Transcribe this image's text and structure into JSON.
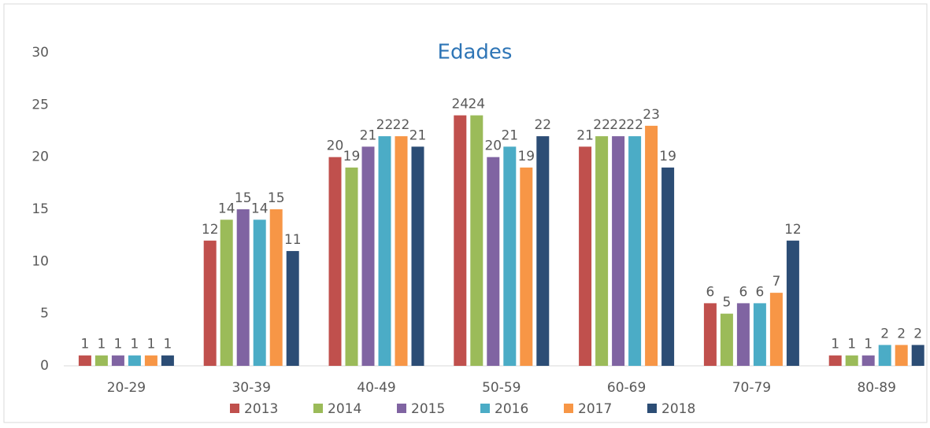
{
  "chart_data": {
    "type": "bar",
    "title": "Edades",
    "categories": [
      "20-29",
      "30-39",
      "40-49",
      "50-59",
      "60-69",
      "70-79",
      "80-89"
    ],
    "series": [
      {
        "name": "2013",
        "color": "#c0504d",
        "values": [
          1,
          12,
          20,
          24,
          21,
          6,
          1
        ]
      },
      {
        "name": "2014",
        "color": "#9bbb59",
        "values": [
          1,
          14,
          19,
          24,
          22,
          5,
          1
        ]
      },
      {
        "name": "2015",
        "color": "#8064a2",
        "values": [
          1,
          15,
          21,
          20,
          22,
          6,
          1
        ]
      },
      {
        "name": "2016",
        "color": "#4bacc6",
        "values": [
          1,
          14,
          22,
          21,
          22,
          6,
          2
        ]
      },
      {
        "name": "2017",
        "color": "#f79646",
        "values": [
          1,
          15,
          22,
          19,
          23,
          7,
          2
        ]
      },
      {
        "name": "2018",
        "color": "#2c4d75",
        "values": [
          1,
          11,
          21,
          22,
          19,
          12,
          2
        ]
      }
    ],
    "ylim": [
      0,
      30
    ],
    "yticks": [
      0,
      5,
      10,
      15,
      20,
      25,
      30
    ],
    "grid": false,
    "legend": "bottom"
  }
}
